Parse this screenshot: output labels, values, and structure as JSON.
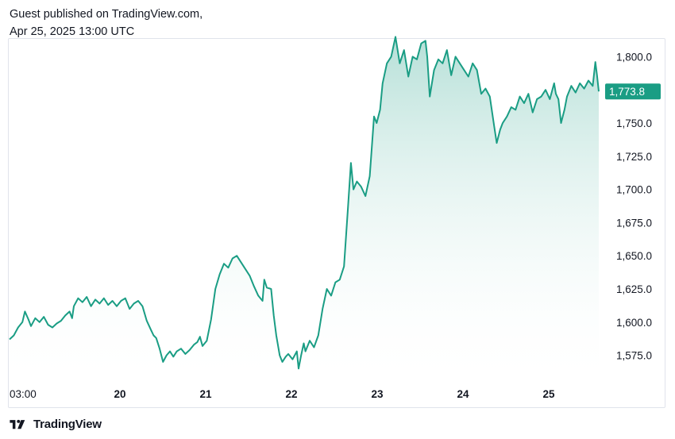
{
  "header": {
    "line1": "Guest published on TradingView.com,",
    "line2": "Apr 25, 2025 13:00 UTC"
  },
  "footer": {
    "brand": "TradingView",
    "logo_icon": "tradingview-logo-icon"
  },
  "colors": {
    "line": "#1a9d84",
    "area_top": "#1a9d84",
    "area_bottom": "#ffffff",
    "price_label_bg": "#1a9d84",
    "grid": "#e0e3eb"
  },
  "chart_data": {
    "type": "area",
    "title": "",
    "xlabel": "",
    "ylabel": "",
    "ylim": [
      1558,
      1820
    ],
    "x_ticks": [
      {
        "x": 18.75,
        "label": "03:00",
        "bold": false
      },
      {
        "x": 20,
        "label": "20",
        "bold": true
      },
      {
        "x": 21,
        "label": "21",
        "bold": true
      },
      {
        "x": 22,
        "label": "22",
        "bold": true
      },
      {
        "x": 23,
        "label": "23",
        "bold": true
      },
      {
        "x": 24,
        "label": "24",
        "bold": true
      },
      {
        "x": 25,
        "label": "25",
        "bold": true
      }
    ],
    "xlim": [
      18.75,
      25.62
    ],
    "y_ticks": [
      {
        "y": 1800,
        "label": "1,800.0"
      },
      {
        "y": 1750,
        "label": "1,750.0"
      },
      {
        "y": 1725,
        "label": "1,725.0"
      },
      {
        "y": 1700,
        "label": "1,700.0"
      },
      {
        "y": 1675,
        "label": "1,675.0"
      },
      {
        "y": 1650,
        "label": "1,650.0"
      },
      {
        "y": 1625,
        "label": "1,625.0"
      },
      {
        "y": 1600,
        "label": "1,600.0"
      },
      {
        "y": 1575,
        "label": "1,575.0"
      }
    ],
    "last_price": {
      "value": 1773.8,
      "label": "1,773.8"
    },
    "series": [
      {
        "values": [
          [
            18.75,
            1587
          ],
          [
            18.8,
            1590
          ],
          [
            18.85,
            1596
          ],
          [
            18.9,
            1600
          ],
          [
            18.93,
            1608
          ],
          [
            18.97,
            1602
          ],
          [
            19.0,
            1597
          ],
          [
            19.05,
            1603
          ],
          [
            19.1,
            1600
          ],
          [
            19.15,
            1604
          ],
          [
            19.2,
            1598
          ],
          [
            19.25,
            1596
          ],
          [
            19.3,
            1599
          ],
          [
            19.35,
            1601
          ],
          [
            19.4,
            1605
          ],
          [
            19.45,
            1608
          ],
          [
            19.48,
            1603
          ],
          [
            19.5,
            1612
          ],
          [
            19.55,
            1618
          ],
          [
            19.6,
            1615
          ],
          [
            19.65,
            1619
          ],
          [
            19.7,
            1612
          ],
          [
            19.75,
            1617
          ],
          [
            19.8,
            1614
          ],
          [
            19.85,
            1618
          ],
          [
            19.9,
            1613
          ],
          [
            19.95,
            1616
          ],
          [
            20.0,
            1612
          ],
          [
            20.05,
            1616
          ],
          [
            20.1,
            1618
          ],
          [
            20.15,
            1610
          ],
          [
            20.2,
            1614
          ],
          [
            20.25,
            1616
          ],
          [
            20.3,
            1612
          ],
          [
            20.35,
            1601
          ],
          [
            20.4,
            1594
          ],
          [
            20.43,
            1590
          ],
          [
            20.46,
            1588
          ],
          [
            20.5,
            1580
          ],
          [
            20.54,
            1570
          ],
          [
            20.58,
            1575
          ],
          [
            20.62,
            1578
          ],
          [
            20.66,
            1574
          ],
          [
            20.7,
            1578
          ],
          [
            20.75,
            1580
          ],
          [
            20.8,
            1576
          ],
          [
            20.85,
            1579
          ],
          [
            20.9,
            1583
          ],
          [
            20.94,
            1585
          ],
          [
            20.97,
            1589
          ],
          [
            21.0,
            1582
          ],
          [
            21.05,
            1586
          ],
          [
            21.1,
            1602
          ],
          [
            21.15,
            1625
          ],
          [
            21.2,
            1636
          ],
          [
            21.25,
            1644
          ],
          [
            21.3,
            1641
          ],
          [
            21.35,
            1648
          ],
          [
            21.4,
            1650
          ],
          [
            21.45,
            1645
          ],
          [
            21.5,
            1640
          ],
          [
            21.55,
            1635
          ],
          [
            21.6,
            1627
          ],
          [
            21.65,
            1620
          ],
          [
            21.7,
            1616
          ],
          [
            21.72,
            1632
          ],
          [
            21.75,
            1626
          ],
          [
            21.8,
            1625
          ],
          [
            21.83,
            1605
          ],
          [
            21.86,
            1590
          ],
          [
            21.9,
            1575
          ],
          [
            21.93,
            1570
          ],
          [
            21.97,
            1574
          ],
          [
            22.0,
            1576
          ],
          [
            22.05,
            1572
          ],
          [
            22.1,
            1578
          ],
          [
            22.12,
            1565
          ],
          [
            22.15,
            1575
          ],
          [
            22.18,
            1584
          ],
          [
            22.2,
            1578
          ],
          [
            22.25,
            1586
          ],
          [
            22.3,
            1581
          ],
          [
            22.35,
            1590
          ],
          [
            22.4,
            1610
          ],
          [
            22.45,
            1625
          ],
          [
            22.5,
            1620
          ],
          [
            22.55,
            1630
          ],
          [
            22.6,
            1632
          ],
          [
            22.65,
            1642
          ],
          [
            22.7,
            1690
          ],
          [
            22.73,
            1720
          ],
          [
            22.76,
            1700
          ],
          [
            22.8,
            1706
          ],
          [
            22.85,
            1702
          ],
          [
            22.9,
            1695
          ],
          [
            22.95,
            1710
          ],
          [
            23.0,
            1755
          ],
          [
            23.03,
            1750
          ],
          [
            23.07,
            1760
          ],
          [
            23.1,
            1780
          ],
          [
            23.15,
            1795
          ],
          [
            23.2,
            1800
          ],
          [
            23.25,
            1815
          ],
          [
            23.3,
            1795
          ],
          [
            23.35,
            1805
          ],
          [
            23.4,
            1785
          ],
          [
            23.45,
            1800
          ],
          [
            23.5,
            1798
          ],
          [
            23.55,
            1810
          ],
          [
            23.6,
            1812
          ],
          [
            23.62,
            1800
          ],
          [
            23.65,
            1770
          ],
          [
            23.7,
            1790
          ],
          [
            23.75,
            1798
          ],
          [
            23.8,
            1795
          ],
          [
            23.85,
            1805
          ],
          [
            23.9,
            1786
          ],
          [
            23.95,
            1800
          ],
          [
            24.0,
            1795
          ],
          [
            24.05,
            1790
          ],
          [
            24.1,
            1785
          ],
          [
            24.15,
            1795
          ],
          [
            24.2,
            1790
          ],
          [
            24.25,
            1772
          ],
          [
            24.3,
            1776
          ],
          [
            24.35,
            1770
          ],
          [
            24.4,
            1748
          ],
          [
            24.43,
            1735
          ],
          [
            24.47,
            1745
          ],
          [
            24.5,
            1750
          ],
          [
            24.55,
            1755
          ],
          [
            24.6,
            1762
          ],
          [
            24.65,
            1760
          ],
          [
            24.7,
            1770
          ],
          [
            24.75,
            1765
          ],
          [
            24.8,
            1772
          ],
          [
            24.85,
            1758
          ],
          [
            24.9,
            1768
          ],
          [
            24.95,
            1770
          ],
          [
            25.0,
            1775
          ],
          [
            25.05,
            1768
          ],
          [
            25.1,
            1780
          ],
          [
            25.12,
            1772
          ],
          [
            25.15,
            1768
          ],
          [
            25.18,
            1750
          ],
          [
            25.22,
            1760
          ],
          [
            25.25,
            1770
          ],
          [
            25.3,
            1778
          ],
          [
            25.35,
            1773
          ],
          [
            25.4,
            1780
          ],
          [
            25.45,
            1776
          ],
          [
            25.5,
            1782
          ],
          [
            25.55,
            1778
          ],
          [
            25.58,
            1796
          ],
          [
            25.6,
            1786
          ],
          [
            25.62,
            1773.8
          ]
        ]
      }
    ]
  }
}
